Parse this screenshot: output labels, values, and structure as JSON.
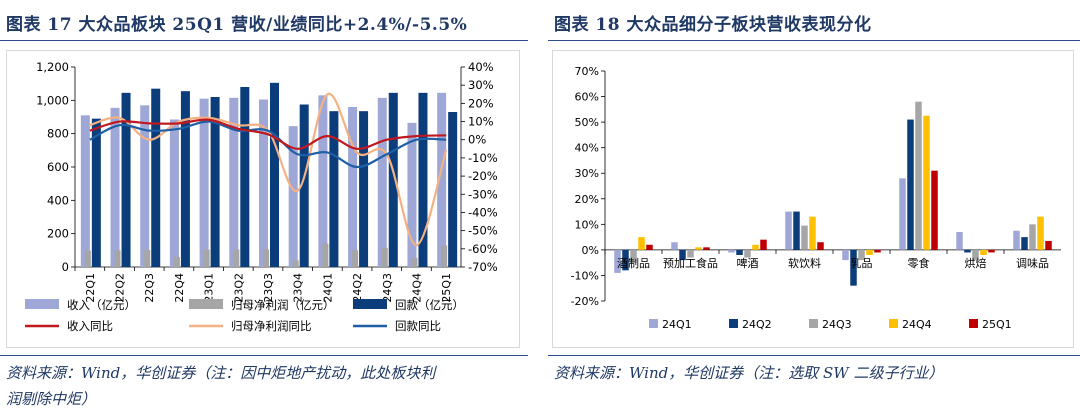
{
  "left": {
    "title": "图表 17 大众品板块 25Q1 营收/业绩同比+2.4%/-5.5%",
    "source": "资料来源：Wind，华创证券（注：因中炬地产扰动，此处板块利润剔除中炬）",
    "source_line1": "资料来源：Wind，华创证券（注：因中炬地产扰动，此处板块利",
    "source_line2": "润剔除中炬）"
  },
  "right": {
    "title": "图表 18 大众品细分子板块营收表现分化",
    "source": "资料来源：Wind，华创证券（注：选取 SW 二级子行业）"
  },
  "colors": {
    "revenue": "#9ea7d6",
    "profit": "#a6a6a6",
    "collection": "#0b3d7a",
    "revenue_yoy": "#c0181f",
    "profit_yoy": "#f4b183",
    "collection_yoy": "#1f5fa6",
    "q1": "#9ea7d6",
    "q2": "#0b3d7a",
    "q3": "#a6a6a6",
    "q4": "#ffc000",
    "q5": "#c00000"
  },
  "chart_data": [
    {
      "type": "bar",
      "categories": [
        "22Q1",
        "22Q2",
        "22Q3",
        "22Q4",
        "23Q1",
        "23Q2",
        "23Q3",
        "23Q4",
        "24Q1",
        "24Q2",
        "24Q3",
        "24Q4",
        "25Q1"
      ],
      "left_ticks": [
        "1,200",
        "1,000",
        "800",
        "600",
        "400",
        "200",
        "0"
      ],
      "right_ticks": [
        "40%",
        "30%",
        "20%",
        "10%",
        "0%",
        "-10%",
        "-20%",
        "-30%",
        "-40%",
        "-50%",
        "-60%",
        "-70%"
      ],
      "ylim": [
        0,
        1200
      ],
      "y2lim": [
        -70,
        40
      ],
      "series": [
        {
          "name": "收入（亿元）",
          "axis": "left",
          "kind": "bar",
          "values": [
            910,
            955,
            970,
            885,
            1010,
            1015,
            1005,
            845,
            1030,
            960,
            1015,
            865,
            1045
          ]
        },
        {
          "name": "归母净利润（亿元）",
          "axis": "left",
          "kind": "bar",
          "values": [
            98,
            100,
            102,
            60,
            105,
            105,
            105,
            40,
            140,
            100,
            115,
            55,
            130
          ]
        },
        {
          "name": "回款（亿元）",
          "axis": "left",
          "kind": "bar",
          "values": [
            890,
            1045,
            1070,
            1055,
            1020,
            1080,
            1105,
            975,
            935,
            935,
            1045,
            1045,
            930
          ]
        },
        {
          "name": "收入同比",
          "axis": "right",
          "kind": "line",
          "values": [
            5,
            10,
            9,
            9,
            11,
            6,
            3,
            -5,
            2,
            -5,
            0,
            2,
            2.4
          ]
        },
        {
          "name": "归母净利润同比",
          "axis": "right",
          "kind": "line",
          "values": [
            8,
            12,
            0,
            10,
            12,
            8,
            5,
            -28,
            25,
            -7,
            -8,
            -58,
            -5.5
          ]
        },
        {
          "name": "回款同比",
          "axis": "right",
          "kind": "line",
          "values": [
            0,
            8,
            5,
            6,
            10,
            5,
            5,
            -8,
            -7,
            -15,
            -8,
            0,
            0
          ]
        }
      ],
      "legend": [
        "收入（亿元）",
        "归母净利润（亿元）",
        "回款（亿元）",
        "收入同比",
        "归母净利润同比",
        "回款同比"
      ]
    },
    {
      "type": "bar",
      "categories": [
        "酒制品",
        "预加工食品",
        "啤酒",
        "软饮料",
        "乳品",
        "零食",
        "烘焙",
        "调味品"
      ],
      "ticks": [
        "70%",
        "60%",
        "50%",
        "40%",
        "30%",
        "20%",
        "10%",
        "0%",
        "-10%",
        "-20%"
      ],
      "ylim": [
        -20,
        70
      ],
      "series": [
        {
          "name": "24Q1",
          "values": [
            -9,
            3,
            -1,
            15,
            -4,
            28,
            7,
            7.5
          ]
        },
        {
          "name": "24Q2",
          "values": [
            -8,
            -4,
            -2,
            15,
            -14,
            51,
            -1,
            5
          ]
        },
        {
          "name": "24Q3",
          "values": [
            -5,
            -3,
            -3,
            9.5,
            -4,
            58,
            -4,
            10
          ]
        },
        {
          "name": "24Q4",
          "values": [
            5,
            1,
            2,
            13,
            -2,
            52.5,
            -2,
            13
          ]
        },
        {
          "name": "25Q1",
          "values": [
            2,
            1,
            4,
            3,
            -1,
            31,
            -1,
            3.5
          ]
        }
      ],
      "legend": [
        "24Q1",
        "24Q2",
        "24Q3",
        "24Q4",
        "25Q1"
      ]
    }
  ]
}
